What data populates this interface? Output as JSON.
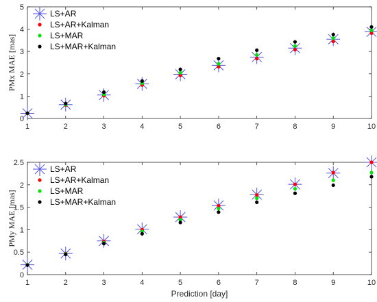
{
  "chart_data": [
    {
      "type": "scatter",
      "title": "",
      "xlabel": "",
      "ylabel": "PMx MAE [mas]",
      "xlim": [
        1,
        10
      ],
      "ylim": [
        0,
        5
      ],
      "xticks": [
        1,
        2,
        3,
        4,
        5,
        6,
        7,
        8,
        9,
        10
      ],
      "yticks": [
        0,
        1,
        2,
        3,
        4,
        5
      ],
      "legend_position": "top-left",
      "x": [
        1,
        2,
        3,
        4,
        5,
        6,
        7,
        8,
        9,
        10
      ],
      "series": [
        {
          "name": "LS+AR",
          "marker": "asterisk",
          "color": "#4f4fe0",
          "values": [
            0.23,
            0.62,
            1.05,
            1.55,
            1.98,
            2.38,
            2.75,
            3.15,
            3.55,
            3.88
          ]
        },
        {
          "name": "LS+AR+Kalman",
          "marker": "dot",
          "color": "#ff0000",
          "values": [
            0.22,
            0.6,
            1.02,
            1.5,
            1.93,
            2.32,
            2.68,
            3.08,
            3.45,
            3.82
          ]
        },
        {
          "name": "LS+MAR",
          "marker": "dot",
          "color": "#00e600",
          "values": [
            0.23,
            0.62,
            1.08,
            1.58,
            2.05,
            2.45,
            2.85,
            3.25,
            3.6,
            3.95
          ]
        },
        {
          "name": "LS+MAR+Kalman",
          "marker": "dot",
          "color": "#000000",
          "values": [
            0.24,
            0.67,
            1.18,
            1.68,
            2.2,
            2.68,
            3.06,
            3.43,
            3.76,
            4.1
          ]
        }
      ]
    },
    {
      "type": "scatter",
      "title": "",
      "xlabel": "Prediction [day]",
      "ylabel": "PMy MAE [mas]",
      "xlim": [
        1,
        10
      ],
      "ylim": [
        0,
        2.5
      ],
      "xticks": [
        1,
        2,
        3,
        4,
        5,
        6,
        7,
        8,
        9,
        10
      ],
      "yticks": [
        0,
        0.5,
        1,
        1.5,
        2,
        2.5
      ],
      "legend_position": "top-left",
      "x": [
        1,
        2,
        3,
        4,
        5,
        6,
        7,
        8,
        9,
        10
      ],
      "series": [
        {
          "name": "LS+AR",
          "marker": "asterisk",
          "color": "#4f4fe0",
          "values": [
            0.22,
            0.47,
            0.75,
            1.01,
            1.28,
            1.54,
            1.78,
            2.01,
            2.26,
            2.5
          ]
        },
        {
          "name": "LS+AR+Kalman",
          "marker": "dot",
          "color": "#ff0000",
          "values": [
            0.22,
            0.47,
            0.74,
            1.0,
            1.28,
            1.53,
            1.77,
            2.01,
            2.27,
            2.5
          ]
        },
        {
          "name": "LS+MAR",
          "marker": "dot",
          "color": "#00e600",
          "values": [
            0.22,
            0.46,
            0.71,
            0.96,
            1.22,
            1.47,
            1.7,
            1.91,
            2.1,
            2.27
          ]
        },
        {
          "name": "LS+MAR+Kalman",
          "marker": "dot",
          "color": "#000000",
          "values": [
            0.21,
            0.45,
            0.69,
            0.91,
            1.16,
            1.39,
            1.61,
            1.81,
            1.99,
            2.18
          ]
        }
      ]
    }
  ]
}
